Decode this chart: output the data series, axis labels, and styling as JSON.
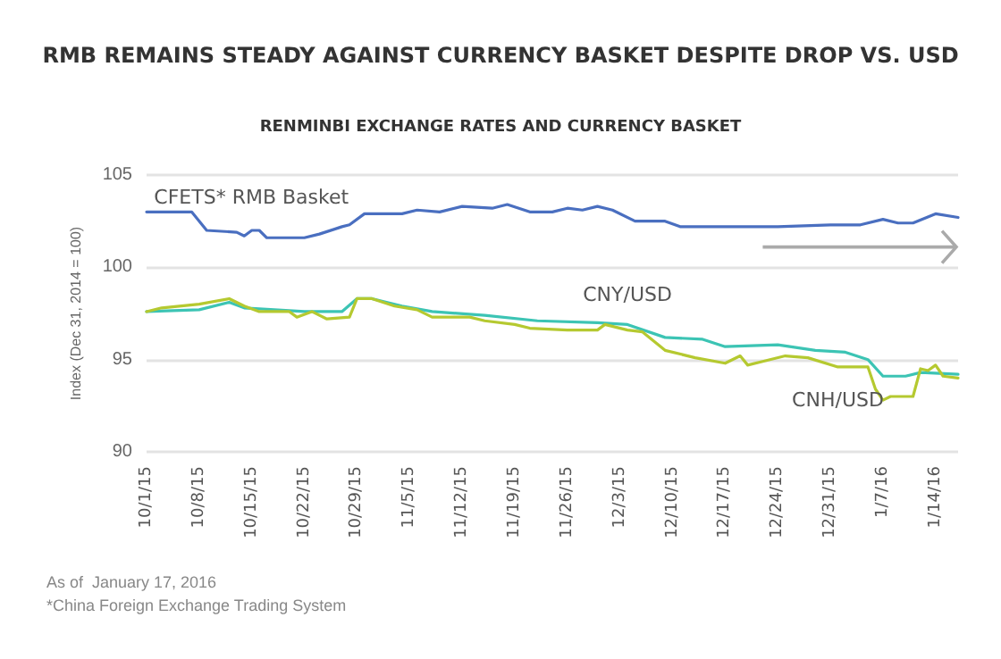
{
  "chart_data": {
    "type": "line",
    "title": "RMB REMAINS STEADY AGAINST CURRENCY BASKET DESPITE DROP VS. USD",
    "subtitle": "RENMINBI EXCHANGE RATES AND CURRENCY BASKET",
    "ylabel": "Index (Dec 31, 2014 = 100)",
    "annotations": [
      "As of  January 17, 2016",
      "*China Foreign Exchange Trading System"
    ],
    "xlim": [
      "2015-10-01",
      "2016-01-17"
    ],
    "xticks": [
      {
        "value": "2015-10-01",
        "label": "10/1/15"
      },
      {
        "value": "2015-10-08",
        "label": "10/8/15"
      },
      {
        "value": "2015-10-15",
        "label": "10/15/15"
      },
      {
        "value": "2015-10-22",
        "label": "10/22/15"
      },
      {
        "value": "2015-10-29",
        "label": "10/29/15"
      },
      {
        "value": "2015-11-05",
        "label": "11/5/15"
      },
      {
        "value": "2015-11-12",
        "label": "11/12/15"
      },
      {
        "value": "2015-11-19",
        "label": "11/19/15"
      },
      {
        "value": "2015-11-26",
        "label": "11/26/15"
      },
      {
        "value": "2015-12-03",
        "label": "12/3/15"
      },
      {
        "value": "2015-12-10",
        "label": "12/10/15"
      },
      {
        "value": "2015-12-17",
        "label": "12/17/15"
      },
      {
        "value": "2015-12-24",
        "label": "12/24/15"
      },
      {
        "value": "2015-12-31",
        "label": "12/31/15"
      },
      {
        "value": "2016-01-07",
        "label": "1/7/16"
      },
      {
        "value": "2016-01-14",
        "label": "1/14/16"
      }
    ],
    "ylim": [
      90,
      105
    ],
    "yticks": [
      90,
      95,
      100,
      105
    ],
    "grid": "y",
    "legend": false,
    "marker": "none",
    "line_style": "solid",
    "series": [
      {
        "name": "CFETS* RMB Basket",
        "color": "#4a6fc0",
        "x": [
          "2015-10-01",
          "2015-10-07",
          "2015-10-09",
          "2015-10-13",
          "2015-10-14",
          "2015-10-15",
          "2015-10-16",
          "2015-10-17",
          "2015-10-22",
          "2015-10-24",
          "2015-10-27",
          "2015-10-28",
          "2015-10-30",
          "2015-11-04",
          "2015-11-06",
          "2015-11-09",
          "2015-11-12",
          "2015-11-16",
          "2015-11-18",
          "2015-11-21",
          "2015-11-24",
          "2015-11-26",
          "2015-11-28",
          "2015-11-30",
          "2015-12-02",
          "2015-12-05",
          "2015-12-09",
          "2015-12-11",
          "2015-12-14",
          "2015-12-18",
          "2015-12-24",
          "2015-12-31",
          "2016-01-04",
          "2016-01-07",
          "2016-01-09",
          "2016-01-11",
          "2016-01-14",
          "2016-01-17"
        ],
        "values": [
          103.0,
          103.0,
          102.0,
          101.9,
          101.7,
          102.0,
          102.0,
          101.6,
          101.6,
          101.8,
          102.2,
          102.3,
          102.9,
          102.9,
          103.1,
          103.0,
          103.3,
          103.2,
          103.4,
          103.0,
          103.0,
          103.2,
          103.1,
          103.3,
          103.1,
          102.5,
          102.5,
          102.2,
          102.2,
          102.2,
          102.2,
          102.3,
          102.3,
          102.6,
          102.4,
          102.4,
          102.9,
          102.7
        ]
      },
      {
        "name": "CNY/USD",
        "color": "#3cc4b4",
        "x": [
          "2015-10-01",
          "2015-10-08",
          "2015-10-12",
          "2015-10-14",
          "2015-10-22",
          "2015-10-27",
          "2015-10-29",
          "2015-10-31",
          "2015-11-04",
          "2015-11-08",
          "2015-11-15",
          "2015-11-22",
          "2015-11-30",
          "2015-12-04",
          "2015-12-09",
          "2015-12-14",
          "2015-12-17",
          "2015-12-24",
          "2015-12-29",
          "2016-01-02",
          "2016-01-05",
          "2016-01-07",
          "2016-01-10",
          "2016-01-12",
          "2016-01-17"
        ],
        "values": [
          97.6,
          97.7,
          98.1,
          97.8,
          97.6,
          97.6,
          98.3,
          98.3,
          97.9,
          97.6,
          97.4,
          97.1,
          97.0,
          96.9,
          96.2,
          96.1,
          95.7,
          95.8,
          95.5,
          95.4,
          95.0,
          94.1,
          94.1,
          94.3,
          94.2
        ]
      },
      {
        "name": "CNH/USD",
        "color": "#b5c930",
        "x": [
          "2015-10-01",
          "2015-10-03",
          "2015-10-08",
          "2015-10-12",
          "2015-10-14",
          "2015-10-16",
          "2015-10-20",
          "2015-10-21",
          "2015-10-23",
          "2015-10-25",
          "2015-10-28",
          "2015-10-29",
          "2015-10-31",
          "2015-11-03",
          "2015-11-06",
          "2015-11-08",
          "2015-11-13",
          "2015-11-15",
          "2015-11-19",
          "2015-11-21",
          "2015-11-26",
          "2015-11-30",
          "2015-12-01",
          "2015-12-04",
          "2015-12-06",
          "2015-12-09",
          "2015-12-13",
          "2015-12-17",
          "2015-12-19",
          "2015-12-20",
          "2015-12-22",
          "2015-12-25",
          "2015-12-28",
          "2016-01-01",
          "2016-01-05",
          "2016-01-06",
          "2016-01-07",
          "2016-01-08",
          "2016-01-11",
          "2016-01-12",
          "2016-01-13",
          "2016-01-14",
          "2016-01-15",
          "2016-01-17"
        ],
        "values": [
          97.6,
          97.8,
          98.0,
          98.3,
          97.9,
          97.6,
          97.6,
          97.3,
          97.6,
          97.2,
          97.3,
          98.3,
          98.3,
          97.9,
          97.7,
          97.3,
          97.3,
          97.1,
          96.9,
          96.7,
          96.6,
          96.6,
          96.9,
          96.6,
          96.5,
          95.5,
          95.1,
          94.8,
          95.2,
          94.7,
          94.9,
          95.2,
          95.1,
          94.6,
          94.6,
          93.4,
          92.8,
          93.0,
          93.0,
          94.5,
          94.4,
          94.7,
          94.1,
          94.0
        ]
      }
    ]
  }
}
